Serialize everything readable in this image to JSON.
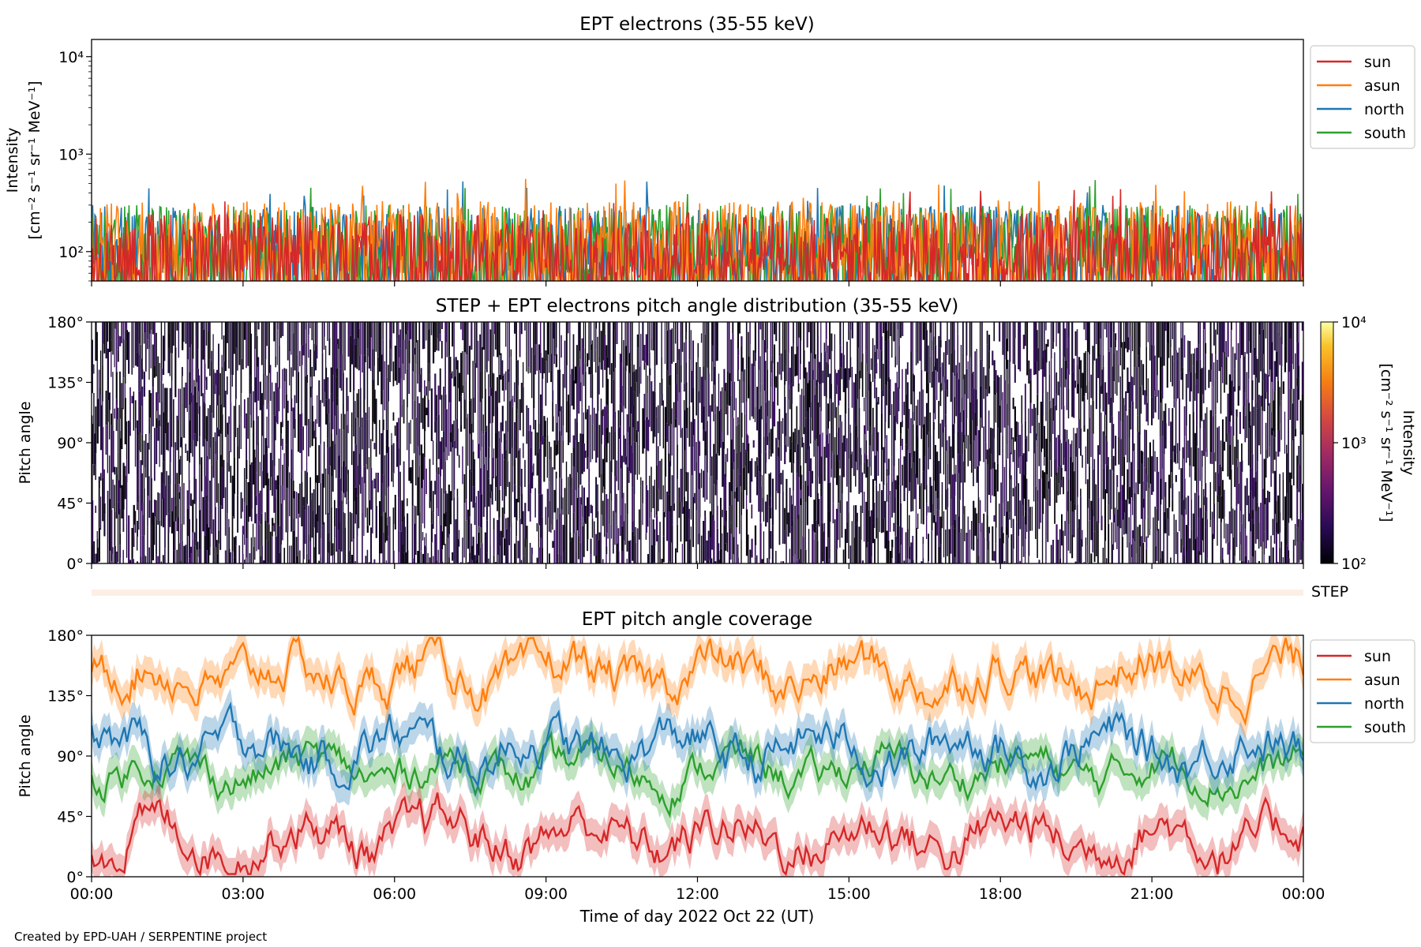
{
  "figure": {
    "credit": "Created by EPD-UAH / SERPENTINE project",
    "xlabel": "Time of day 2022 Oct 22 (UT)",
    "x_ticks": [
      "00:00",
      "03:00",
      "06:00",
      "09:00",
      "12:00",
      "15:00",
      "18:00",
      "21:00",
      "00:00"
    ],
    "x_range_hours": [
      0,
      24
    ]
  },
  "colors": {
    "sun": "#d62728",
    "asun": "#ff7f0e",
    "north": "#1f77b4",
    "south": "#2ca02c",
    "step_band": "#fdeee6"
  },
  "chart_data": [
    {
      "type": "line",
      "title": "EPT electrons (35-55 keV)",
      "ylabel": "Intensity",
      "ylabel_units": "[cm⁻² s⁻¹ sr⁻¹ MeV⁻¹]",
      "yscale": "log",
      "ylim": [
        50,
        15000
      ],
      "y_ticks": [
        {
          "value": 100,
          "label": "10²"
        },
        {
          "value": 1000,
          "label": "10³"
        },
        {
          "value": 10000,
          "label": "10⁴"
        }
      ],
      "x_hours": [
        0,
        24
      ],
      "legend": {
        "placement": "outside-right",
        "entries": [
          "sun",
          "asun",
          "north",
          "south"
        ]
      },
      "series": [
        {
          "name": "north",
          "typical_range": [
            60,
            300
          ],
          "peak": 540
        },
        {
          "name": "south",
          "typical_range": [
            60,
            300
          ],
          "peak": 620
        },
        {
          "name": "asun",
          "typical_range": [
            60,
            330
          ],
          "peak": 560
        },
        {
          "name": "sun",
          "typical_range": [
            55,
            250
          ],
          "peak": 470
        }
      ]
    },
    {
      "type": "heatmap",
      "title": "STEP + EPT electrons pitch angle distribution (35-55 keV)",
      "ylabel": "Pitch angle",
      "y_ticks": [
        "0°",
        "45°",
        "90°",
        "135°",
        "180°"
      ],
      "ylim": [
        0,
        180
      ],
      "x_hours": [
        0,
        24
      ],
      "colorbar": {
        "label": "Intensity",
        "units": "[cm⁻² s⁻¹ sr⁻¹ MeV⁻¹]",
        "scale": "log",
        "range": [
          100,
          10000
        ],
        "tick_labels": [
          "10²",
          "10³",
          "10⁴"
        ],
        "colormap": "inferno"
      },
      "step_label": "STEP"
    },
    {
      "type": "line",
      "title": "EPT pitch angle coverage",
      "ylabel": "Pitch angle",
      "y_ticks": [
        "0°",
        "45°",
        "90°",
        "135°",
        "180°"
      ],
      "ylim": [
        0,
        180
      ],
      "x_hours": [
        0,
        24
      ],
      "legend": {
        "placement": "outside-right",
        "entries": [
          "sun",
          "asun",
          "north",
          "south"
        ]
      },
      "series": [
        {
          "name": "sun",
          "mean_deg": 30,
          "spread_deg": 25
        },
        {
          "name": "asun",
          "mean_deg": 150,
          "spread_deg": 25
        },
        {
          "name": "north",
          "mean_deg": 95,
          "spread_deg": 25
        },
        {
          "name": "south",
          "mean_deg": 80,
          "spread_deg": 20
        }
      ]
    }
  ]
}
